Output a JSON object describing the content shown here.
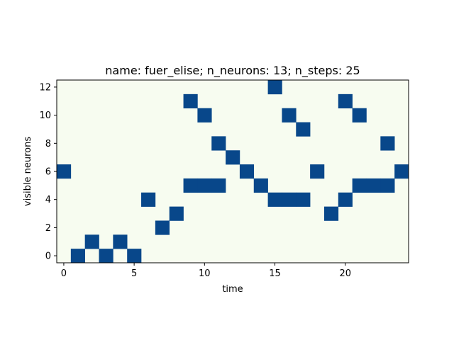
{
  "chart_data": {
    "type": "heatmap",
    "title": "name: fuer_elise; n_neurons: 13; n_steps: 25",
    "xlabel": "time",
    "ylabel": "visible neurons",
    "n_steps": 25,
    "n_neurons": 13,
    "xlim": [
      -0.5,
      24.5
    ],
    "ylim": [
      -0.5,
      12.5
    ],
    "xticks": [
      0,
      5,
      10,
      15,
      20
    ],
    "yticks": [
      0,
      2,
      4,
      6,
      8,
      10,
      12
    ],
    "grid": false,
    "colors": {
      "background": "#f7fcf0",
      "active": "#08478a",
      "frame": "#000000"
    },
    "active_cells": [
      {
        "x": 0,
        "y": 6
      },
      {
        "x": 1,
        "y": 0
      },
      {
        "x": 2,
        "y": 1
      },
      {
        "x": 3,
        "y": 0
      },
      {
        "x": 4,
        "y": 1
      },
      {
        "x": 5,
        "y": 0
      },
      {
        "x": 6,
        "y": 4
      },
      {
        "x": 7,
        "y": 2
      },
      {
        "x": 8,
        "y": 3
      },
      {
        "x": 9,
        "y": 11
      },
      {
        "x": 9,
        "y": 5
      },
      {
        "x": 10,
        "y": 10
      },
      {
        "x": 10,
        "y": 5
      },
      {
        "x": 11,
        "y": 8
      },
      {
        "x": 11,
        "y": 5
      },
      {
        "x": 12,
        "y": 7
      },
      {
        "x": 13,
        "y": 6
      },
      {
        "x": 14,
        "y": 5
      },
      {
        "x": 15,
        "y": 12
      },
      {
        "x": 15,
        "y": 4
      },
      {
        "x": 16,
        "y": 10
      },
      {
        "x": 16,
        "y": 4
      },
      {
        "x": 17,
        "y": 9
      },
      {
        "x": 17,
        "y": 4
      },
      {
        "x": 18,
        "y": 6
      },
      {
        "x": 19,
        "y": 3
      },
      {
        "x": 20,
        "y": 11
      },
      {
        "x": 20,
        "y": 4
      },
      {
        "x": 21,
        "y": 10
      },
      {
        "x": 21,
        "y": 5
      },
      {
        "x": 22,
        "y": 5
      },
      {
        "x": 23,
        "y": 8
      },
      {
        "x": 23,
        "y": 5
      },
      {
        "x": 24,
        "y": 6
      }
    ]
  }
}
